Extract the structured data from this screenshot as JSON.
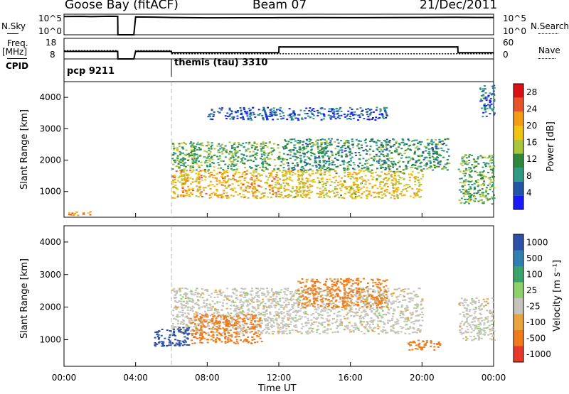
{
  "header": {
    "station": "Goose Bay (fitACF)",
    "beam": "Beam 07",
    "date": "21/Dec/2011"
  },
  "side_labels": {
    "nsky": "N.Sky",
    "nsearch": "N.Search",
    "freq": "Freq.",
    "mhz": "[MHz]",
    "nave": "Nave",
    "cpid": "CPID"
  },
  "small_axes": {
    "nsky_ticks": [
      "10^5",
      "10^0"
    ],
    "nsearch_ticks": [
      "10^5",
      "10^0"
    ],
    "freq_ticks": [
      "18",
      "8"
    ],
    "nave_ticks": [
      "60",
      "0"
    ]
  },
  "cpid_segments": [
    {
      "start_hour": 0,
      "label": "pcp 9211"
    },
    {
      "start_hour": 6,
      "label": "themis (tau) 3310"
    }
  ],
  "colors": {
    "power_scale": [
      "#1a1aff",
      "#2257a8",
      "#2f9a86",
      "#2d8a3a",
      "#a9c53a",
      "#f1c40f",
      "#f39c12",
      "#e8542a",
      "#d11"
    ]
  },
  "chart_data": [
    {
      "type": "line",
      "panel": "N.Sky / N.Search",
      "ylabel_left": "N.Sky",
      "ylabel_right": "N.Search",
      "x_hours": [
        0,
        0.5,
        1.0,
        1.5,
        2.0,
        2.5,
        3.0,
        3.01,
        3.9,
        4.0,
        5.0,
        6.0,
        7.0,
        8.0,
        10.0,
        12.0,
        14.0,
        16.0,
        18.0,
        20.0,
        22.0,
        23.0,
        24.0
      ],
      "values": [
        40000,
        42000,
        45000,
        38000,
        42000,
        47000,
        45000,
        1,
        1,
        30000,
        28000,
        22000,
        20000,
        18000,
        19000,
        20000,
        21000,
        20000,
        21000,
        22000,
        25000,
        22000,
        23000
      ],
      "ylim": [
        1,
        100000
      ],
      "yscale": "log"
    },
    {
      "type": "line",
      "panel": "Freq / Nave",
      "series": [
        {
          "name": "Freq.",
          "x_hours": [
            0,
            3.0,
            3.01,
            3.9,
            4.0,
            6.0,
            6.01,
            24.0
          ],
          "values": [
            12,
            12,
            8,
            8,
            12,
            12,
            10.5,
            10.5
          ]
        },
        {
          "name": "Nave",
          "x_hours": [
            0,
            3.0,
            3.01,
            3.9,
            4.0,
            6.0,
            6.01,
            12.0,
            12.01,
            22.0,
            22.01,
            24.0
          ],
          "values": [
            22,
            22,
            0,
            0,
            22,
            22,
            18,
            18,
            35,
            35,
            18,
            18
          ]
        }
      ],
      "ylim_freq": [
        8,
        18
      ],
      "ylim_nave": [
        0,
        60
      ]
    },
    {
      "type": "heatmap",
      "panel": "Power",
      "x_label": "Time UT",
      "y_label": "Slant Range [km]",
      "x_ticks": [
        "00:00",
        "04:00",
        "08:00",
        "12:00",
        "16:00",
        "20:00",
        "00:00"
      ],
      "y_ticks": [
        "1000",
        "2000",
        "3000",
        "4000"
      ],
      "xlim_hours": [
        0,
        24
      ],
      "ylim_km": [
        180,
        4500
      ],
      "colorbar_label": "Power [dB]",
      "colorbar_ticks": [
        "4",
        "8",
        "12",
        "16",
        "20",
        "24",
        "28"
      ],
      "clim": [
        0,
        30
      ],
      "regions": [
        {
          "t": [
            6,
            12
          ],
          "r": [
            800,
            1700
          ],
          "level": 20
        },
        {
          "t": [
            12,
            20
          ],
          "r": [
            800,
            1700
          ],
          "level": 18
        },
        {
          "t": [
            6,
            12
          ],
          "r": [
            1700,
            2600
          ],
          "level": 12
        },
        {
          "t": [
            12,
            21.5
          ],
          "r": [
            1700,
            2700
          ],
          "level": 10
        },
        {
          "t": [
            0.2,
            1.5
          ],
          "r": [
            250,
            400
          ],
          "level": 22
        },
        {
          "t": [
            22,
            24
          ],
          "r": [
            600,
            2200
          ],
          "level": 12
        },
        {
          "t": [
            23.2,
            24
          ],
          "r": [
            3400,
            4400
          ],
          "level": 6
        },
        {
          "t": [
            8,
            18
          ],
          "r": [
            3300,
            3700
          ],
          "level": 5
        }
      ]
    },
    {
      "type": "heatmap",
      "panel": "Velocity",
      "x_label": "Time UT",
      "y_label": "Slant Range [km]",
      "x_ticks": [
        "00:00",
        "04:00",
        "08:00",
        "12:00",
        "16:00",
        "20:00",
        "00:00"
      ],
      "y_ticks": [
        "1000",
        "2000",
        "3000",
        "4000"
      ],
      "xlim_hours": [
        0,
        24
      ],
      "ylim_km": [
        180,
        4500
      ],
      "colorbar_label": "Velocity [m s⁻¹]",
      "colorbar_ticks": [
        "1000",
        "500",
        "100",
        "25",
        "-25",
        "-100",
        "-500",
        "-1000"
      ],
      "regions": [
        {
          "t": [
            6,
            20
          ],
          "r": [
            1200,
            2600
          ],
          "level": 0
        },
        {
          "t": [
            7,
            11
          ],
          "r": [
            900,
            1800
          ],
          "level": -150
        },
        {
          "t": [
            13,
            18
          ],
          "r": [
            2000,
            2900
          ],
          "level": -120
        },
        {
          "t": [
            5,
            7
          ],
          "r": [
            800,
            1400
          ],
          "level": 600
        },
        {
          "t": [
            22,
            24
          ],
          "r": [
            1000,
            2300
          ],
          "level": 0
        },
        {
          "t": [
            19,
            21
          ],
          "r": [
            700,
            1000
          ],
          "level": -300
        }
      ]
    }
  ]
}
